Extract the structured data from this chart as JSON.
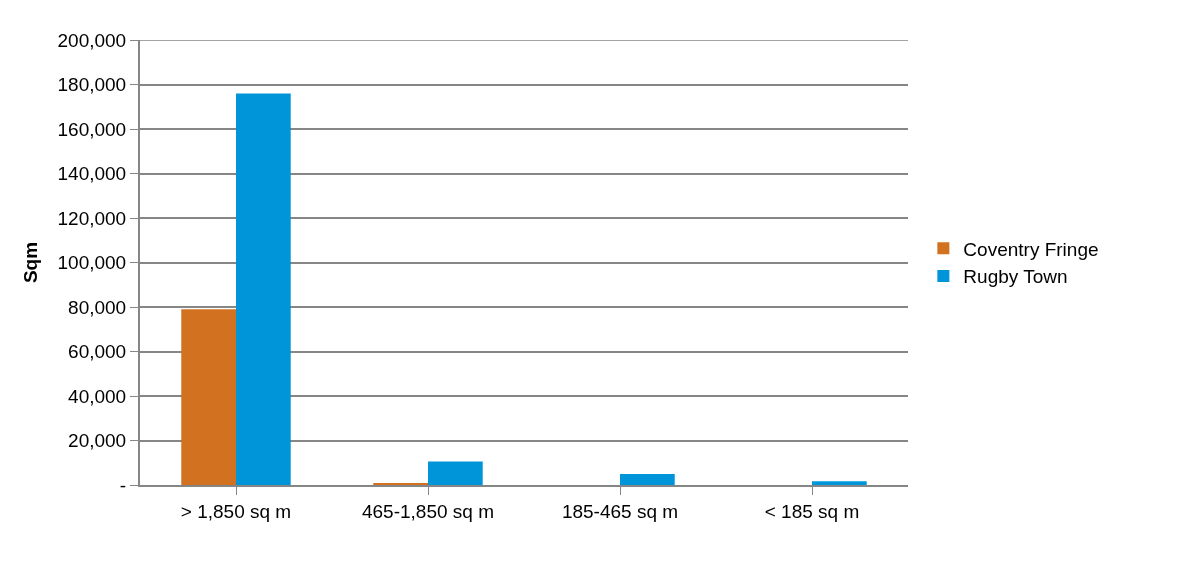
{
  "chart_data": {
    "type": "bar",
    "ylabel": "Sqm",
    "categories": [
      "> 1,850 sq m",
      "465-1,850 sq m",
      "185-465 sq m",
      "< 185 sq m"
    ],
    "series": [
      {
        "name": "Coventry Fringe",
        "color": "#d2711f",
        "values": [
          79000,
          500,
          0,
          0
        ]
      },
      {
        "name": "Rugby Town",
        "color": "#0094d8",
        "values": [
          176000,
          10600,
          5000,
          1700
        ]
      }
    ],
    "ylim": [
      0,
      200000
    ],
    "yticks": [
      {
        "value": 0,
        "label": "-"
      },
      {
        "value": 20000,
        "label": "20,000"
      },
      {
        "value": 40000,
        "label": "40,000"
      },
      {
        "value": 60000,
        "label": "60,000"
      },
      {
        "value": 80000,
        "label": "80,000"
      },
      {
        "value": 100000,
        "label": "100,000"
      },
      {
        "value": 120000,
        "label": "120,000"
      },
      {
        "value": 140000,
        "label": "140,000"
      },
      {
        "value": 160000,
        "label": "160,000"
      },
      {
        "value": 180000,
        "label": "180,000"
      },
      {
        "value": 200000,
        "label": "200,000"
      }
    ],
    "grid": "y",
    "legend": "right"
  }
}
